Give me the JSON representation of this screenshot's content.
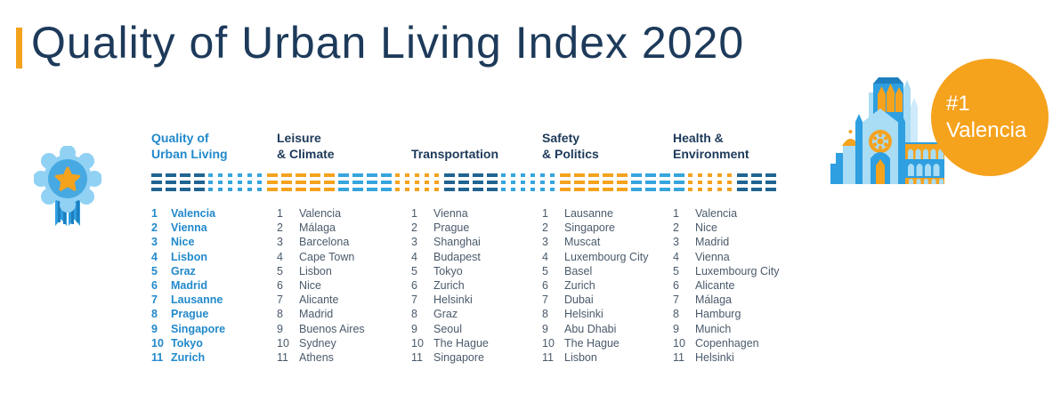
{
  "title": "Quality of Urban Living Index 2020",
  "winner": {
    "rank": "#1",
    "city": "Valencia"
  },
  "colors": {
    "navy": "#1D3A5A",
    "highlight_blue": "#2189CB",
    "list_text": "#4A5A6B",
    "orange": "#F5A21D",
    "divider_dark": "#206492",
    "divider_light": "#36A5DE",
    "badge_light_blue": "#90D1F4",
    "badge_mid_blue": "#47A9E1"
  },
  "divider": {
    "colors": {
      "dark": "#206492",
      "light": "#36A5DE",
      "orange": "#F5A21D"
    },
    "pattern": [
      {
        "color": "dark",
        "shape": "dash",
        "count": 4
      },
      {
        "color": "light",
        "shape": "dot",
        "count": 6
      },
      {
        "color": "orange",
        "shape": "dash",
        "count": 5
      },
      {
        "color": "light",
        "shape": "dash",
        "count": 4
      },
      {
        "color": "orange",
        "shape": "dot",
        "count": 5
      }
    ]
  },
  "chart_data": {
    "type": "table",
    "title": "Quality of Urban Living Index 2020",
    "columns": [
      {
        "header": "Quality of\nUrban Living",
        "highlighted": true,
        "ranking": [
          "Valencia",
          "Vienna",
          "Nice",
          "Lisbon",
          "Graz",
          "Madrid",
          "Lausanne",
          "Prague",
          "Singapore",
          "Tokyo",
          "Zurich"
        ]
      },
      {
        "header": "Leisure\n& Climate",
        "highlighted": false,
        "ranking": [
          "Valencia",
          "Málaga",
          "Barcelona",
          "Cape Town",
          "Lisbon",
          "Nice",
          "Alicante",
          "Madrid",
          "Buenos Aires",
          "Sydney",
          "Athens"
        ]
      },
      {
        "header": "Transportation",
        "highlighted": false,
        "ranking": [
          "Vienna",
          "Prague",
          "Shanghai",
          "Budapest",
          "Tokyo",
          "Zurich",
          "Helsinki",
          "Graz",
          "Seoul",
          "The Hague",
          "Singapore"
        ]
      },
      {
        "header": "Safety\n& Politics",
        "highlighted": false,
        "ranking": [
          "Lausanne",
          "Singapore",
          "Muscat",
          "Luxembourg City",
          "Basel",
          "Zurich",
          "Dubai",
          "Helsinki",
          "Abu Dhabi",
          "The Hague",
          "Lisbon"
        ]
      },
      {
        "header": "Health &\nEnvironment",
        "highlighted": false,
        "ranking": [
          "Valencia",
          "Nice",
          "Madrid",
          "Vienna",
          "Luxembourg City",
          "Alicante",
          "Málaga",
          "Hamburg",
          "Munich",
          "Copenhagen",
          "Helsinki"
        ]
      }
    ]
  }
}
